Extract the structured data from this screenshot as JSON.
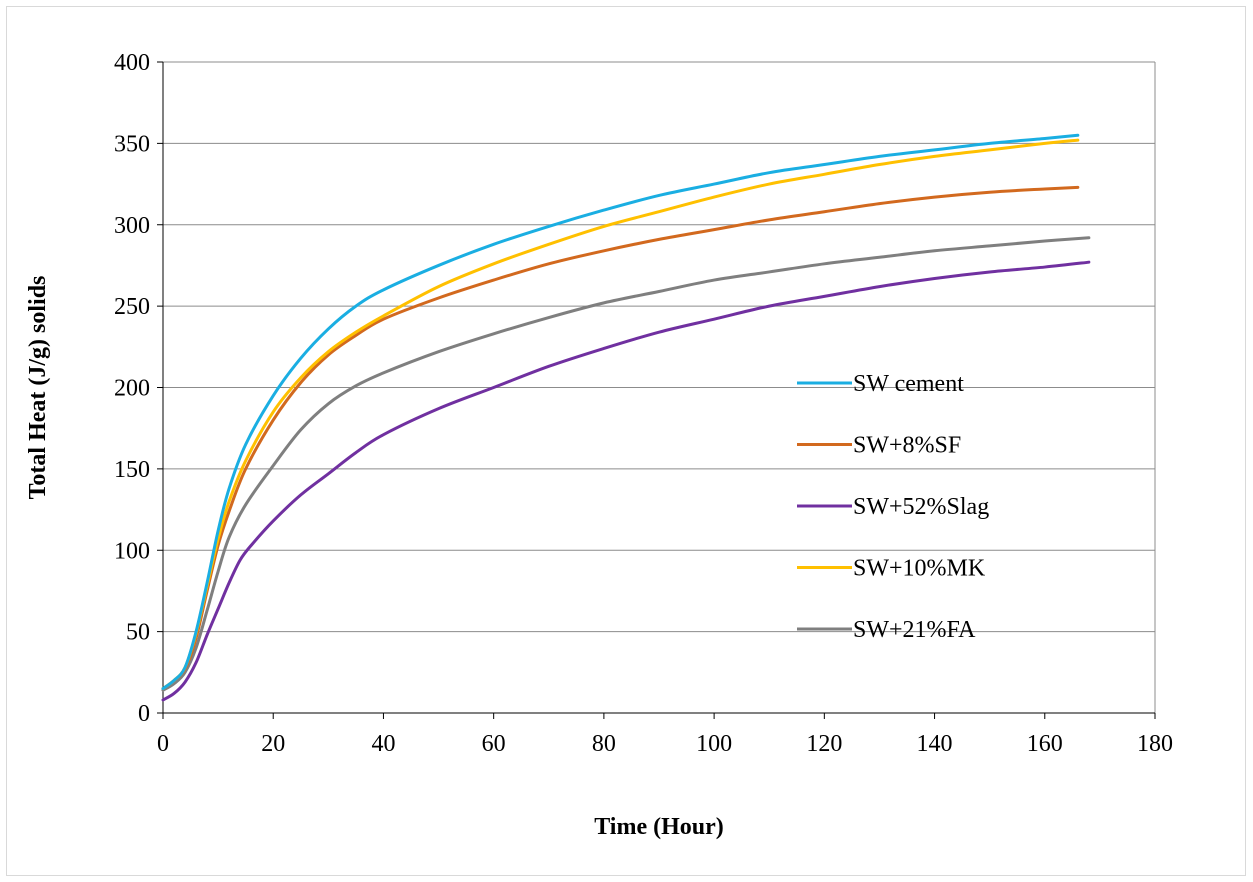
{
  "chart_data": {
    "type": "line",
    "title": "",
    "xlabel": "Time (Hour)",
    "ylabel": "Total Heat (J/g) solids",
    "xlim": [
      0,
      180
    ],
    "ylim": [
      0,
      400
    ],
    "xticks": [
      0,
      20,
      40,
      60,
      80,
      100,
      120,
      140,
      160,
      180
    ],
    "yticks": [
      0,
      50,
      100,
      150,
      200,
      250,
      300,
      350,
      400
    ],
    "grid": "horizontal",
    "legend_position": "right-center",
    "series": [
      {
        "name": "SW cement",
        "color": "#1AAEE2",
        "points": [
          [
            0,
            15
          ],
          [
            2,
            20
          ],
          [
            4,
            28
          ],
          [
            6,
            50
          ],
          [
            8,
            80
          ],
          [
            10,
            112
          ],
          [
            12,
            138
          ],
          [
            15,
            165
          ],
          [
            20,
            195
          ],
          [
            25,
            218
          ],
          [
            30,
            236
          ],
          [
            35,
            250
          ],
          [
            40,
            260
          ],
          [
            50,
            275
          ],
          [
            60,
            288
          ],
          [
            70,
            299
          ],
          [
            80,
            309
          ],
          [
            90,
            318
          ],
          [
            100,
            325
          ],
          [
            110,
            332
          ],
          [
            120,
            337
          ],
          [
            130,
            342
          ],
          [
            140,
            346
          ],
          [
            150,
            350
          ],
          [
            160,
            353
          ],
          [
            166,
            355
          ]
        ]
      },
      {
        "name": "SW+8%SF",
        "color": "#D2691E",
        "points": [
          [
            0,
            15
          ],
          [
            2,
            20
          ],
          [
            4,
            27
          ],
          [
            6,
            46
          ],
          [
            8,
            75
          ],
          [
            10,
            103
          ],
          [
            12,
            124
          ],
          [
            15,
            150
          ],
          [
            20,
            180
          ],
          [
            25,
            203
          ],
          [
            30,
            220
          ],
          [
            35,
            232
          ],
          [
            40,
            242
          ],
          [
            50,
            255
          ],
          [
            60,
            266
          ],
          [
            70,
            276
          ],
          [
            80,
            284
          ],
          [
            90,
            291
          ],
          [
            100,
            297
          ],
          [
            110,
            303
          ],
          [
            120,
            308
          ],
          [
            130,
            313
          ],
          [
            140,
            317
          ],
          [
            150,
            320
          ],
          [
            160,
            322
          ],
          [
            166,
            323
          ]
        ]
      },
      {
        "name": "SW+52%Slag",
        "color": "#7030A0",
        "points": [
          [
            0,
            8
          ],
          [
            2,
            12
          ],
          [
            4,
            19
          ],
          [
            6,
            31
          ],
          [
            8,
            48
          ],
          [
            10,
            64
          ],
          [
            12,
            80
          ],
          [
            14,
            94
          ],
          [
            16,
            103
          ],
          [
            20,
            118
          ],
          [
            25,
            134
          ],
          [
            30,
            147
          ],
          [
            35,
            160
          ],
          [
            40,
            171
          ],
          [
            50,
            187
          ],
          [
            60,
            200
          ],
          [
            70,
            213
          ],
          [
            80,
            224
          ],
          [
            90,
            234
          ],
          [
            100,
            242
          ],
          [
            110,
            250
          ],
          [
            120,
            256
          ],
          [
            130,
            262
          ],
          [
            140,
            267
          ],
          [
            150,
            271
          ],
          [
            160,
            274
          ],
          [
            168,
            277
          ]
        ]
      },
      {
        "name": "SW+10%MK",
        "color": "#FFC000",
        "points": [
          [
            0,
            15
          ],
          [
            2,
            20
          ],
          [
            4,
            28
          ],
          [
            6,
            49
          ],
          [
            8,
            78
          ],
          [
            10,
            107
          ],
          [
            12,
            130
          ],
          [
            15,
            155
          ],
          [
            20,
            185
          ],
          [
            25,
            206
          ],
          [
            30,
            222
          ],
          [
            35,
            234
          ],
          [
            40,
            244
          ],
          [
            50,
            262
          ],
          [
            60,
            276
          ],
          [
            70,
            288
          ],
          [
            80,
            299
          ],
          [
            90,
            308
          ],
          [
            100,
            317
          ],
          [
            110,
            325
          ],
          [
            120,
            331
          ],
          [
            130,
            337
          ],
          [
            140,
            342
          ],
          [
            150,
            346
          ],
          [
            160,
            350
          ],
          [
            166,
            352
          ]
        ]
      },
      {
        "name": "SW+21%FA",
        "color": "#7F7F7F",
        "points": [
          [
            0,
            14
          ],
          [
            2,
            18
          ],
          [
            4,
            25
          ],
          [
            6,
            40
          ],
          [
            8,
            63
          ],
          [
            10,
            87
          ],
          [
            12,
            108
          ],
          [
            15,
            128
          ],
          [
            20,
            152
          ],
          [
            25,
            174
          ],
          [
            30,
            190
          ],
          [
            35,
            201
          ],
          [
            40,
            209
          ],
          [
            50,
            222
          ],
          [
            60,
            233
          ],
          [
            70,
            243
          ],
          [
            80,
            252
          ],
          [
            90,
            259
          ],
          [
            100,
            266
          ],
          [
            110,
            271
          ],
          [
            120,
            276
          ],
          [
            130,
            280
          ],
          [
            140,
            284
          ],
          [
            150,
            287
          ],
          [
            160,
            290
          ],
          [
            168,
            292
          ]
        ]
      }
    ]
  }
}
